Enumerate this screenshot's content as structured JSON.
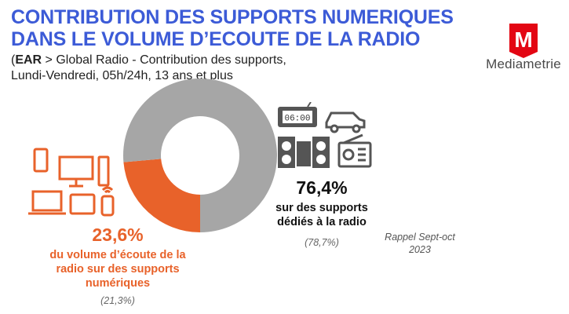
{
  "header": {
    "title_line1": "CONTRIBUTION DES SUPPORTS NUMERIQUES",
    "title_line2": "DANS LE VOLUME D’ECOUTE DE LA RADIO",
    "subtitle_bold": "EAR",
    "subtitle_open": "(",
    "subtitle_rest1": " > Global Radio - Contribution des supports,",
    "subtitle_line2": "Lundi-Vendredi, 05h/24h, 13 ans et plus"
  },
  "logo": {
    "text": "Mediametrie",
    "letter": "M"
  },
  "colors": {
    "digital": "#e8622a",
    "radio": "#a6a6a6",
    "title": "#3c5bd7",
    "icon": "#e8622a",
    "icon_dark": "#555555"
  },
  "chart_data": {
    "type": "pie",
    "subtype": "donut",
    "slices": [
      {
        "value": 23.6,
        "label": "23,6%",
        "description": [
          "du volume d’écoute de la",
          "radio sur des supports",
          "numériques"
        ],
        "recall": "(21,3%)",
        "color": "#e8622a"
      },
      {
        "value": 76.4,
        "label": "76,4%",
        "description": [
          "sur des supports",
          "dédiés à la radio"
        ],
        "recall": "(78,7%)",
        "color": "#a6a6a6"
      }
    ],
    "recall_note": [
      "Rappel Sept-oct",
      "2023"
    ]
  },
  "clock_text": "06:00"
}
